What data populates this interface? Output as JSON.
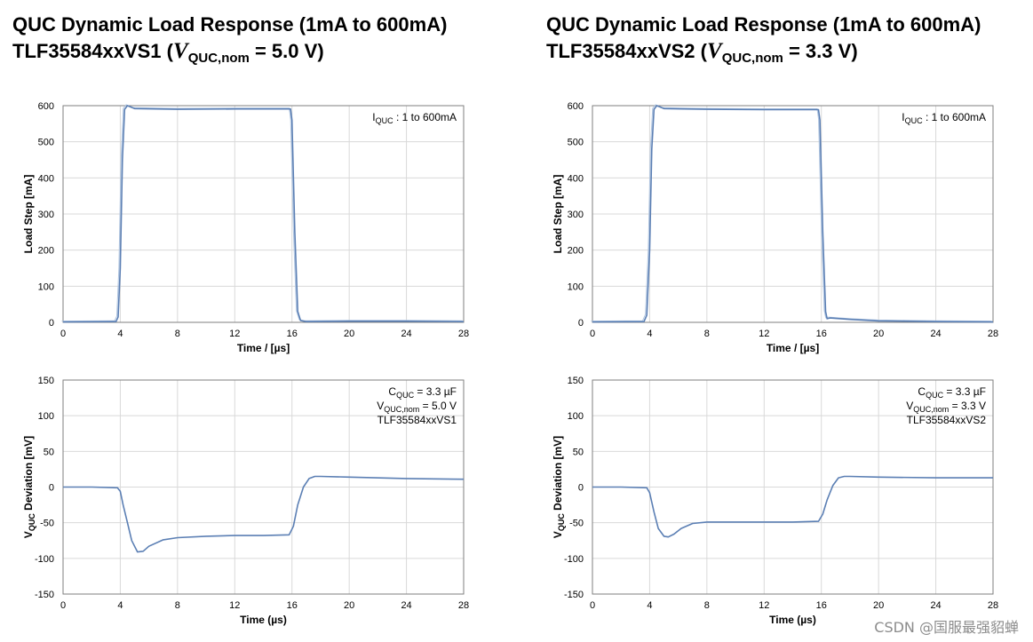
{
  "titles": [
    {
      "line1": "QUC Dynamic Load Response (1mA to 600mA)",
      "device": "TLF35584xxVS1",
      "v_symbol": "V",
      "v_sub": "QUC,nom",
      "v_value": " = 5.0 V"
    },
    {
      "line1": "QUC Dynamic Load Response (1mA to 600mA)",
      "device": "TLF35584xxVS2",
      "v_symbol": "V",
      "v_sub": "QUC,nom",
      "v_value": " = 3.3 V"
    }
  ],
  "watermark": "CSDN @国服最强貂蝉",
  "colors": {
    "line": "#5b7fb4",
    "grid": "#d9d9d9",
    "frame": "#7f7f7f",
    "ghost": "#aec4e0"
  },
  "chart_data": [
    {
      "id": "vs1-load",
      "type": "line",
      "xlabel": "Time / [µs]",
      "ylabel": "Load Step  [mA]",
      "xlim": [
        0,
        28
      ],
      "ylim": [
        0,
        600
      ],
      "xticks": [
        0,
        4,
        8,
        12,
        16,
        20,
        24,
        28
      ],
      "yticks": [
        0,
        100,
        200,
        300,
        400,
        500,
        600
      ],
      "grid": true,
      "annotations": [
        {
          "parts": [
            [
              "I",
              ""
            ],
            [
              "QUC",
              "sub"
            ],
            [
              " :  1 to 600mA",
              ""
            ]
          ]
        }
      ],
      "series": [
        {
          "x": [
            0,
            3.7,
            3.85,
            4.0,
            4.15,
            4.3,
            4.5,
            5.0,
            8,
            12,
            15.9,
            16.0,
            16.2,
            16.4,
            16.6,
            17,
            20,
            24,
            28
          ],
          "y": [
            1,
            2,
            15,
            150,
            450,
            590,
            600,
            592,
            590,
            591,
            591,
            560,
            250,
            30,
            5,
            2,
            3,
            3,
            2
          ]
        }
      ]
    },
    {
      "id": "vs1-dev",
      "type": "line",
      "xlabel": "Time (µs)",
      "ylabel": "V QUC Deviation  [mV]",
      "xlim": [
        0,
        28
      ],
      "ylim": [
        -150,
        150
      ],
      "xticks": [
        0,
        4,
        8,
        12,
        16,
        20,
        24,
        28
      ],
      "yticks": [
        -150,
        -100,
        -50,
        0,
        50,
        100,
        150
      ],
      "grid": true,
      "annotations": [
        {
          "parts": [
            [
              "C",
              ""
            ],
            [
              "QUC",
              "sub"
            ],
            [
              " = 3.3 µF",
              ""
            ]
          ]
        },
        {
          "parts": [
            [
              "V",
              ""
            ],
            [
              "QUC,nom",
              "sub"
            ],
            [
              " = 5.0 V",
              ""
            ]
          ]
        },
        {
          "parts": [
            [
              "TLF35584xxVS1",
              ""
            ]
          ]
        }
      ],
      "series": [
        {
          "x": [
            0,
            2,
            3.8,
            4.0,
            4.2,
            4.5,
            4.8,
            5.2,
            5.6,
            6,
            7,
            8,
            10,
            12,
            14,
            15.8,
            16.1,
            16.4,
            16.8,
            17.2,
            17.6,
            18,
            20,
            24,
            28
          ],
          "y": [
            0,
            0,
            -1,
            -6,
            -25,
            -50,
            -75,
            -91,
            -90,
            -83,
            -74,
            -71,
            -69,
            -68,
            -68,
            -67,
            -55,
            -25,
            0,
            12,
            15,
            15,
            14,
            12,
            11
          ]
        }
      ]
    },
    {
      "id": "vs2-load",
      "type": "line",
      "xlabel": "Time / [µs]",
      "ylabel": "Load Step  [mA]",
      "xlim": [
        0,
        28
      ],
      "ylim": [
        0,
        600
      ],
      "xticks": [
        0,
        4,
        8,
        12,
        16,
        20,
        24,
        28
      ],
      "yticks": [
        0,
        100,
        200,
        300,
        400,
        500,
        600
      ],
      "grid": true,
      "annotations": [
        {
          "parts": [
            [
              "I",
              ""
            ],
            [
              "QUC",
              "sub"
            ],
            [
              " :  1 to 600mA",
              ""
            ]
          ]
        }
      ],
      "series": [
        {
          "x": [
            0,
            3.6,
            3.8,
            4.0,
            4.15,
            4.3,
            4.5,
            5.0,
            8,
            12,
            15.8,
            15.9,
            16.1,
            16.3,
            16.4,
            16.6,
            18,
            20,
            24,
            28
          ],
          "y": [
            1,
            2,
            20,
            200,
            480,
            590,
            600,
            592,
            590,
            589,
            589,
            560,
            250,
            30,
            10,
            12,
            8,
            4,
            2,
            1
          ]
        }
      ]
    },
    {
      "id": "vs2-dev",
      "type": "line",
      "xlabel": "Time (µs)",
      "ylabel": "V QUC Deviation  [mV]",
      "xlim": [
        0,
        28
      ],
      "ylim": [
        -150,
        150
      ],
      "xticks": [
        0,
        4,
        8,
        12,
        16,
        20,
        24,
        28
      ],
      "yticks": [
        -150,
        -100,
        -50,
        0,
        50,
        100,
        150
      ],
      "grid": true,
      "annotations": [
        {
          "parts": [
            [
              "C",
              ""
            ],
            [
              "QUC",
              "sub"
            ],
            [
              " = 3.3 µF",
              ""
            ]
          ]
        },
        {
          "parts": [
            [
              "V",
              ""
            ],
            [
              "QUC,nom",
              "sub"
            ],
            [
              " = 3.3 V",
              ""
            ]
          ]
        },
        {
          "parts": [
            [
              "TLF35584xxVS2",
              ""
            ]
          ]
        }
      ],
      "series": [
        {
          "x": [
            0,
            2,
            3.8,
            4.0,
            4.3,
            4.6,
            5.0,
            5.3,
            5.7,
            6.2,
            7,
            8,
            10,
            12,
            14,
            15.8,
            16.1,
            16.4,
            16.8,
            17.2,
            17.6,
            18,
            20,
            24,
            28
          ],
          "y": [
            0,
            0,
            -1,
            -8,
            -35,
            -58,
            -69,
            -70,
            -66,
            -58,
            -51,
            -49,
            -49,
            -49,
            -49,
            -48,
            -38,
            -18,
            2,
            13,
            15,
            15,
            14,
            13,
            13
          ]
        }
      ]
    }
  ]
}
